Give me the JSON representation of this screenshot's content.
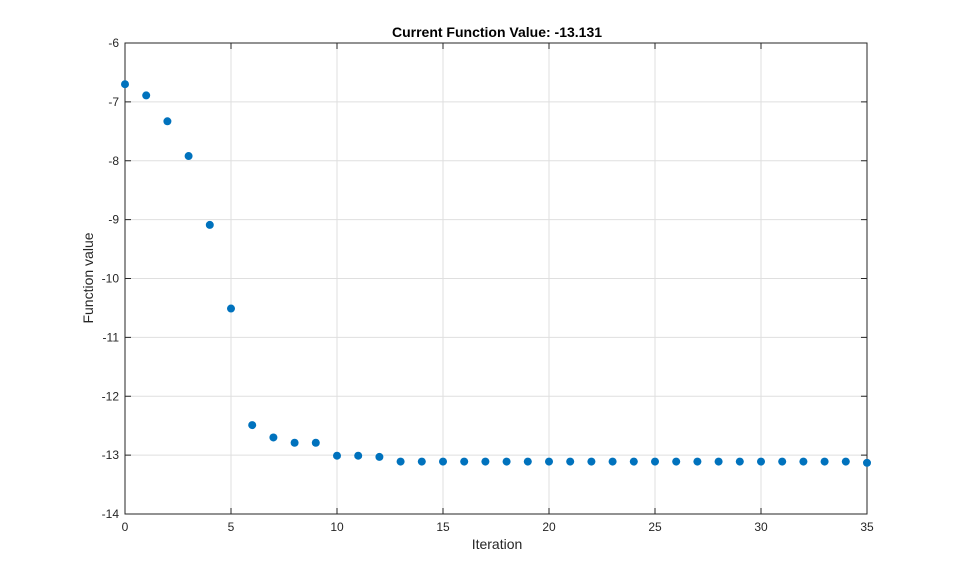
{
  "colors": {
    "marker": "#0072BD",
    "grid": "#dfdfdf",
    "axis": "#262626",
    "title": "#000000"
  },
  "chart_data": {
    "type": "scatter",
    "title": "Current Function Value: -13.131",
    "xlabel": "Iteration",
    "ylabel": "Function value",
    "xlim": [
      0,
      35
    ],
    "ylim": [
      -14,
      -6
    ],
    "xticks": [
      0,
      5,
      10,
      15,
      20,
      25,
      30,
      35
    ],
    "yticks": [
      -14,
      -13,
      -12,
      -11,
      -10,
      -9,
      -8,
      -7,
      -6
    ],
    "grid": true,
    "x": [
      0,
      1,
      2,
      3,
      4,
      5,
      6,
      7,
      8,
      9,
      10,
      11,
      12,
      13,
      14,
      15,
      16,
      17,
      18,
      19,
      20,
      21,
      22,
      23,
      24,
      25,
      26,
      27,
      28,
      29,
      30,
      31,
      32,
      33,
      34,
      35
    ],
    "y": [
      -6.7,
      -6.89,
      -7.33,
      -7.92,
      -9.09,
      -10.51,
      -12.49,
      -12.7,
      -12.79,
      -12.79,
      -13.01,
      -13.01,
      -13.03,
      -13.11,
      -13.11,
      -13.11,
      -13.11,
      -13.11,
      -13.11,
      -13.11,
      -13.11,
      -13.11,
      -13.11,
      -13.11,
      -13.11,
      -13.11,
      -13.11,
      -13.11,
      -13.11,
      -13.11,
      -13.11,
      -13.11,
      -13.11,
      -13.11,
      -13.11,
      -13.131
    ]
  }
}
